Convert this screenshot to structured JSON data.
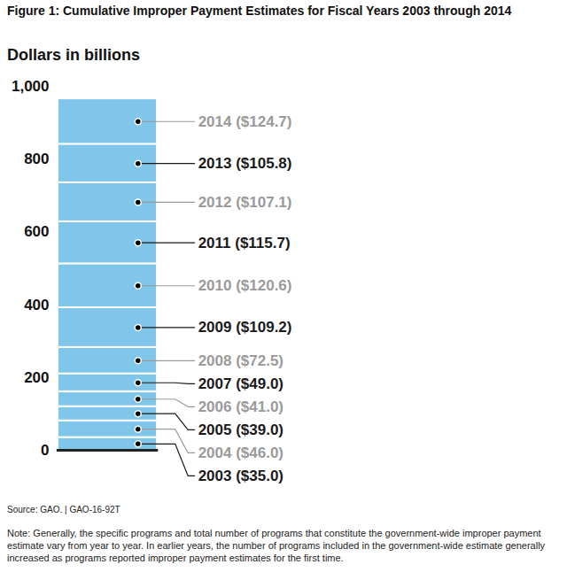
{
  "chart_data": {
    "type": "bar",
    "stacked": true,
    "data_labels": true,
    "title": "Figure 1: Cumulative Improper Payment Estimates for Fiscal Years 2003 through 2014",
    "ylabel": "Dollars in billions",
    "categories": [
      "2003",
      "2004",
      "2005",
      "2006",
      "2007",
      "2008",
      "2009",
      "2010",
      "2011",
      "2012",
      "2013",
      "2014"
    ],
    "values": [
      35.0,
      46.0,
      39.0,
      41.0,
      49.0,
      72.5,
      109.2,
      120.6,
      115.7,
      107.1,
      105.8,
      124.7
    ],
    "value_labels": [
      "2003 ($35.0)",
      "2004 ($46.0)",
      "2005 ($39.0)",
      "2006 ($41.0)",
      "2007 ($49.0)",
      "2008 ($72.5)",
      "2009 ($109.2)",
      "2010 ($120.6)",
      "2011 ($115.7)",
      "2012 ($107.1)",
      "2013 ($105.8)",
      "2014 ($124.7)"
    ],
    "color": "#80c6ea",
    "ylim": [
      0,
      1000
    ],
    "yticks": [
      0,
      200,
      400,
      600,
      800,
      {
        "value": 1000,
        "label": "1,000"
      }
    ],
    "source": "Source: GAO. | GAO-16-92T",
    "note": "Note: Generally, the specific programs and total number of programs that constitute the government-wide improper payment estimate vary from year to year. In earlier years, the number of programs included in the government-wide estimate generally increased as programs reported improper payment estimates for the first time."
  }
}
